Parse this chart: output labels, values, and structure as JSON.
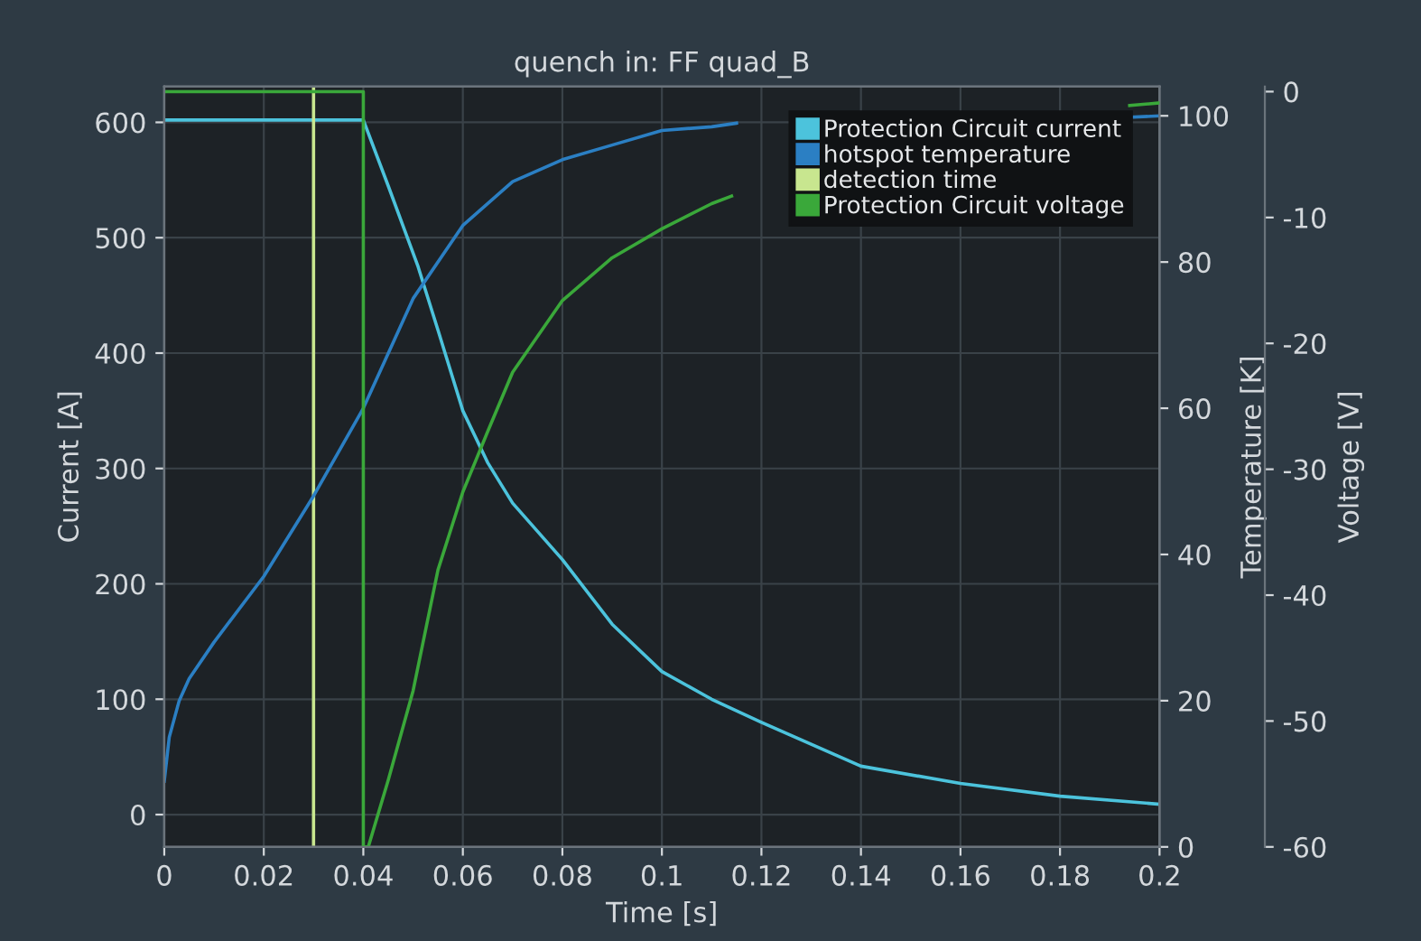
{
  "chart_data": {
    "type": "line",
    "title": "quench in: FF quad_B",
    "xlabel": "Time [s]",
    "ylabel": "Current [A]",
    "y2label": "Temperature [K]",
    "y3label": "Voltage [V]",
    "xlim": [
      0,
      0.2
    ],
    "xticks": [
      0,
      0.02,
      0.04,
      0.06,
      0.08,
      0.1,
      0.12,
      0.14,
      0.16,
      0.18,
      0.2
    ],
    "ylim": [
      -28,
      631
    ],
    "yticks": [
      0,
      100,
      200,
      300,
      400,
      500,
      600
    ],
    "y2lim": [
      0,
      104
    ],
    "y2ticks": [
      0,
      20,
      40,
      60,
      80,
      100
    ],
    "y3lim": [
      -60,
      0.4
    ],
    "y3ticks": [
      0,
      -10,
      -20,
      -30,
      -40,
      -50,
      -60
    ],
    "grid": true,
    "legend": "top right",
    "series": [
      {
        "name": "Protection Circuit current",
        "color": "#4cc3dc",
        "axis": "y",
        "x": [
          0,
          0.04,
          0.045,
          0.051,
          0.055,
          0.06,
          0.065,
          0.07,
          0.08,
          0.09,
          0.1,
          0.11,
          0.12,
          0.14,
          0.16,
          0.18,
          0.2
        ],
        "values": [
          602,
          602,
          545,
          475,
          420,
          350,
          305,
          270,
          221,
          165,
          124,
          100,
          80,
          42,
          27,
          16,
          9
        ]
      },
      {
        "name": "hotspot temperature",
        "color": "#2b7fc3",
        "axis": "y2",
        "x": [
          0,
          0.001,
          0.003,
          0.005,
          0.01,
          0.02,
          0.03,
          0.04,
          0.05,
          0.06,
          0.07,
          0.08,
          0.09,
          0.1,
          0.11,
          0.115,
          0.12,
          0.194,
          0.2
        ],
        "values": [
          9,
          15,
          20,
          23,
          28,
          37,
          48,
          60,
          75,
          85,
          91,
          94,
          96,
          98,
          98.5,
          99,
          null,
          99.8,
          100
        ]
      },
      {
        "name": "detection time",
        "color": "#c8e68f",
        "axis": "y",
        "x": [
          0.03,
          0.03
        ],
        "values": [
          -28,
          631
        ]
      },
      {
        "name": "Protection Circuit voltage",
        "color": "#3aa83a",
        "axis": "y3",
        "x": [
          0,
          0.04,
          0.04,
          0.041,
          0.045,
          0.05,
          0.055,
          0.06,
          0.065,
          0.07,
          0.08,
          0.09,
          0.1,
          0.11,
          0.114,
          0.12,
          0.194,
          0.2
        ],
        "values": [
          0,
          0,
          -60,
          -60,
          -54.7,
          -47.6,
          -38,
          -31.8,
          -27,
          -22.3,
          -16.6,
          -13.2,
          -10.9,
          -8.9,
          -8.3,
          null,
          -1.1,
          -0.9
        ]
      }
    ]
  }
}
